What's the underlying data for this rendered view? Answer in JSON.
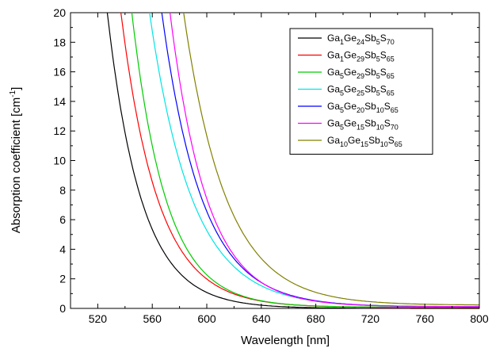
{
  "chart_data": {
    "type": "line",
    "title": "",
    "xlabel": "Wavelength [nm]",
    "ylabel": "Absorption coefficient [cm-1]",
    "ylabel_main": "Absorption coefficient [cm",
    "ylabel_sup": "-1",
    "ylabel_end": "]",
    "xlim": [
      500,
      800
    ],
    "ylim": [
      0,
      20
    ],
    "xticks": [
      520,
      560,
      600,
      640,
      680,
      720,
      760,
      800
    ],
    "yticks": [
      0,
      2,
      4,
      6,
      8,
      10,
      12,
      14,
      16,
      18,
      20
    ],
    "grid": false,
    "legend_position": "top-right",
    "series": [
      {
        "name": "Ga1Ge24Sb5S70",
        "name_parts": [
          [
            "Ga",
            ""
          ],
          [
            "1",
            "sub"
          ],
          [
            "Ge",
            ""
          ],
          [
            "24",
            "sub"
          ],
          [
            "Sb",
            ""
          ],
          [
            "5",
            "sub"
          ],
          [
            "S",
            ""
          ],
          [
            "70",
            "sub"
          ]
        ],
        "color": "#000000",
        "x0": 527,
        "k": 0.04
      },
      {
        "name": "Ga1Ge29Sb5S65",
        "name_parts": [
          [
            "Ga",
            ""
          ],
          [
            "1",
            "sub"
          ],
          [
            "Ge",
            ""
          ],
          [
            "29",
            "sub"
          ],
          [
            "Sb",
            ""
          ],
          [
            "5",
            "sub"
          ],
          [
            "S",
            ""
          ],
          [
            "65",
            "sub"
          ]
        ],
        "color": "#ff0000",
        "x0": 537,
        "k": 0.037,
        "baseline": 0.06
      },
      {
        "name": "Ga5Ge29Sb5S65",
        "name_parts": [
          [
            "Ga",
            ""
          ],
          [
            "5",
            "sub"
          ],
          [
            "Ge",
            ""
          ],
          [
            "29",
            "sub"
          ],
          [
            "Sb",
            ""
          ],
          [
            "5",
            "sub"
          ],
          [
            "S",
            ""
          ],
          [
            "65",
            "sub"
          ]
        ],
        "color": "#00cc00",
        "x0": 545,
        "k": 0.04,
        "baseline": 0.08
      },
      {
        "name": "Ga5Ge25Sb5S65",
        "name_parts": [
          [
            "Ga",
            ""
          ],
          [
            "5",
            "sub"
          ],
          [
            "Ge",
            ""
          ],
          [
            "25",
            "sub"
          ],
          [
            "Sb",
            ""
          ],
          [
            "5",
            "sub"
          ],
          [
            "S",
            ""
          ],
          [
            "65",
            "sub"
          ]
        ],
        "color": "#00e5e5",
        "x0": 558,
        "k": 0.032,
        "baseline": 0.1
      },
      {
        "name": "Ga5Ge20Sb10S65",
        "name_parts": [
          [
            "Ga",
            ""
          ],
          [
            "5",
            "sub"
          ],
          [
            "Ge",
            ""
          ],
          [
            "20",
            "sub"
          ],
          [
            "Sb",
            ""
          ],
          [
            "10",
            "sub"
          ],
          [
            "S",
            ""
          ],
          [
            "65",
            "sub"
          ]
        ],
        "color": "#0000ff",
        "x0": 567,
        "k": 0.034,
        "baseline": 0.1
      },
      {
        "name": "Ga5Ge15Sb10S70",
        "name_parts": [
          [
            "Ga",
            ""
          ],
          [
            "5",
            "sub"
          ],
          [
            "Ge",
            ""
          ],
          [
            "15",
            "sub"
          ],
          [
            "Sb",
            ""
          ],
          [
            "10",
            "sub"
          ],
          [
            "S",
            ""
          ],
          [
            "70",
            "sub"
          ]
        ],
        "color": "#ff00ff",
        "x0": 573,
        "k": 0.037,
        "baseline": 0.12
      },
      {
        "name": "Ga10Ge15Sb10S65",
        "name_parts": [
          [
            "Ga",
            ""
          ],
          [
            "10",
            "sub"
          ],
          [
            "Ge",
            ""
          ],
          [
            "15",
            "sub"
          ],
          [
            "Sb",
            ""
          ],
          [
            "10",
            "sub"
          ],
          [
            "S",
            ""
          ],
          [
            "65",
            "sub"
          ]
        ],
        "color": "#808000",
        "x0": 583,
        "k": 0.032,
        "baseline": 0.22
      }
    ]
  }
}
